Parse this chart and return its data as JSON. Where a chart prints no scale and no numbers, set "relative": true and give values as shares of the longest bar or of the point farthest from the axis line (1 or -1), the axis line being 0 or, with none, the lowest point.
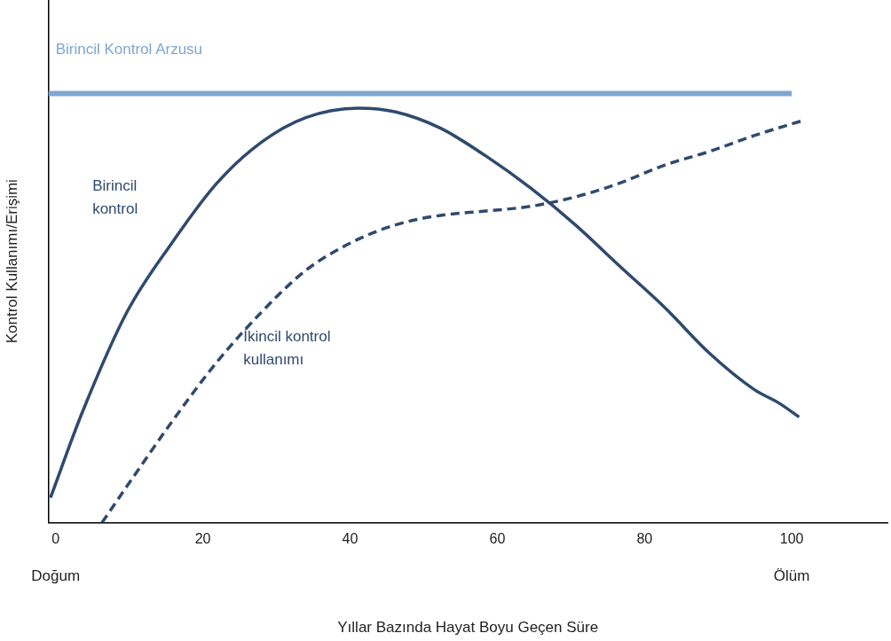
{
  "chart_data": {
    "type": "line",
    "relative": true,
    "xlabel": "Yıllar Bazında Hayat Boyu Geçen Süre",
    "ylabel": "Kontrol Kullanımı/Erişimi",
    "xlim": [
      -1,
      113
    ],
    "xticks": [
      0,
      20,
      40,
      60,
      80,
      100
    ],
    "annotations": [
      "Doğum",
      "Ölüm"
    ],
    "grid": false,
    "legend": false,
    "marker": "none",
    "series": [
      {
        "name": "Birincil Kontrol Arzusu",
        "color": "#7ea6d2",
        "x": [
          -1,
          100
        ],
        "values": [
          1,
          1
        ],
        "line_style": "solid"
      },
      {
        "name": "Birincil\nkontrol",
        "color": "#2f4a6e",
        "x": [
          -0.7,
          3.6,
          9.7,
          15.8,
          21.9,
          28,
          34,
          41.1,
          46.2,
          52.3,
          58.4,
          64.5,
          70.6,
          76.6,
          82.7,
          88.8,
          94.9,
          98.3,
          101
        ],
        "values": [
          0.058,
          0.256,
          0.491,
          0.652,
          0.791,
          0.887,
          0.944,
          0.966,
          0.957,
          0.919,
          0.855,
          0.78,
          0.694,
          0.598,
          0.502,
          0.395,
          0.31,
          0.278,
          0.246
        ],
        "line_style": "solid"
      },
      {
        "name": "İkincil kontrol\nkullanımı",
        "color": "#2f4a6e",
        "x": [
          6.3,
          9.7,
          15.8,
          21.9,
          28,
          34,
          40.1,
          46.2,
          52.3,
          58.4,
          64.5,
          70.6,
          76.6,
          82.7,
          88.8,
          94.9,
          101.3
        ],
        "values": [
          0,
          0.085,
          0.235,
          0.374,
          0.491,
          0.588,
          0.652,
          0.694,
          0.716,
          0.726,
          0.737,
          0.759,
          0.791,
          0.833,
          0.865,
          0.902,
          0.936
        ],
        "line_style": "dashed"
      }
    ]
  }
}
